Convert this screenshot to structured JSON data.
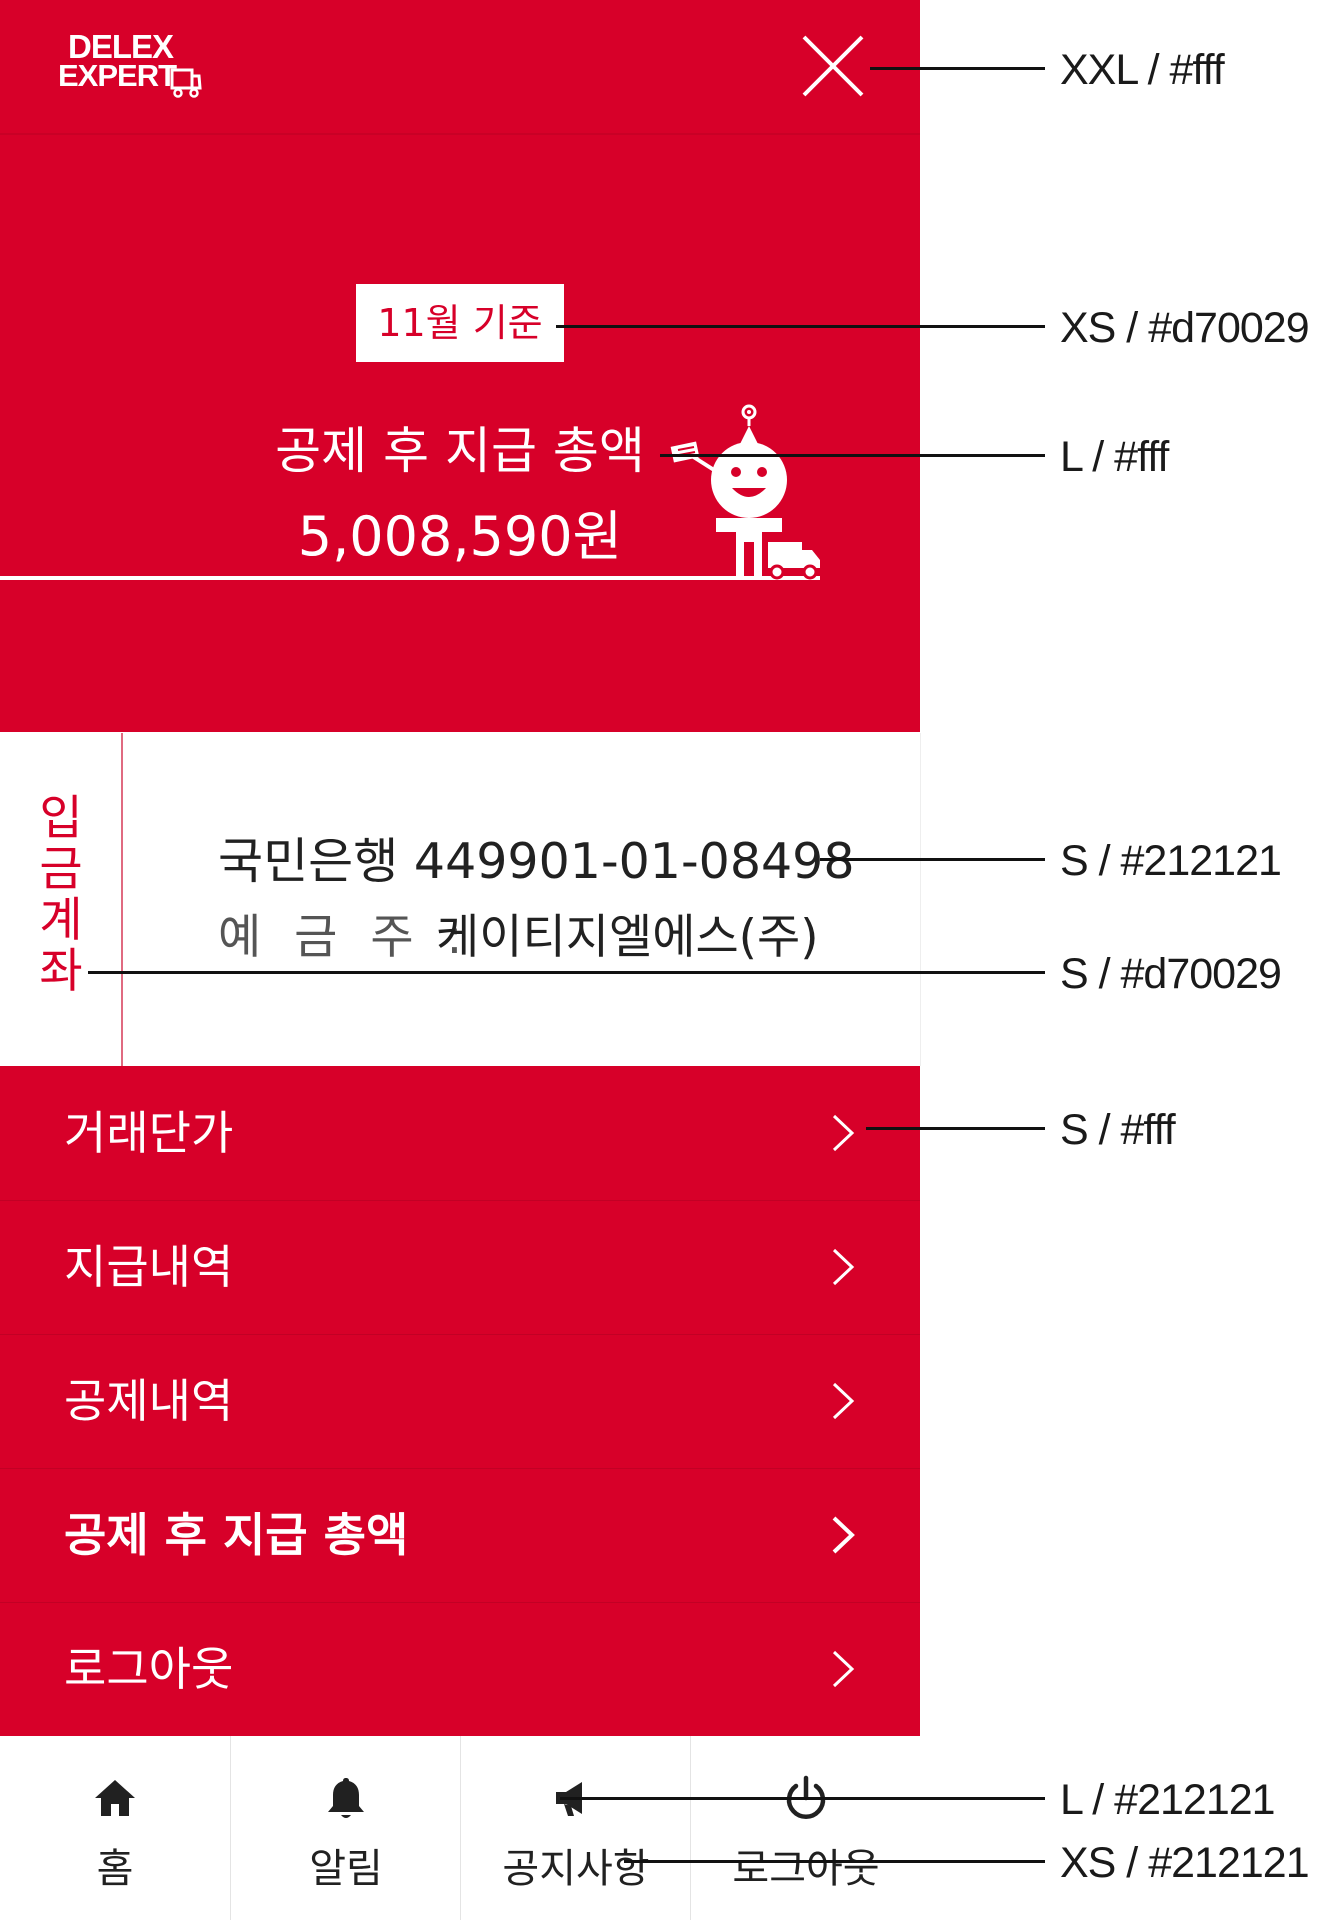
{
  "header": {
    "logo_line1": "DELEX",
    "logo_line2": "EXPERT",
    "close_label": "close"
  },
  "summary": {
    "month_badge": "11월 기준",
    "label": "공제 후 지급 총액",
    "amount": "5,008,590원"
  },
  "account": {
    "title_chars": [
      "입",
      "금",
      "계",
      "좌"
    ],
    "bank_line": "국민은행 449901-01-08498",
    "owner_label": "예 금 주 :",
    "owner_value": "케이티지엘에스(주)"
  },
  "menu": {
    "items": [
      {
        "label": "거래단가"
      },
      {
        "label": "지급내역"
      },
      {
        "label": "공제내역"
      },
      {
        "label": "공제 후 지급 총액"
      },
      {
        "label": "로그아웃"
      }
    ]
  },
  "bottom_nav": {
    "items": [
      {
        "label": "홈",
        "icon": "home-icon"
      },
      {
        "label": "알림",
        "icon": "bell-icon"
      },
      {
        "label": "공지사항",
        "icon": "megaphone-icon"
      },
      {
        "label": "로그아웃",
        "icon": "power-icon"
      }
    ]
  },
  "annotations": [
    {
      "text": "XXL / #fff"
    },
    {
      "text": "XS / #d70029"
    },
    {
      "text": "L / #fff"
    },
    {
      "text": "S / #212121"
    },
    {
      "text": "S / #d70029"
    },
    {
      "text": "S / #fff"
    },
    {
      "text": "L / #212121"
    },
    {
      "text": "XS / #212121"
    }
  ],
  "colors": {
    "brand_red": "#d70029",
    "text_dark": "#212121",
    "white": "#ffffff"
  }
}
